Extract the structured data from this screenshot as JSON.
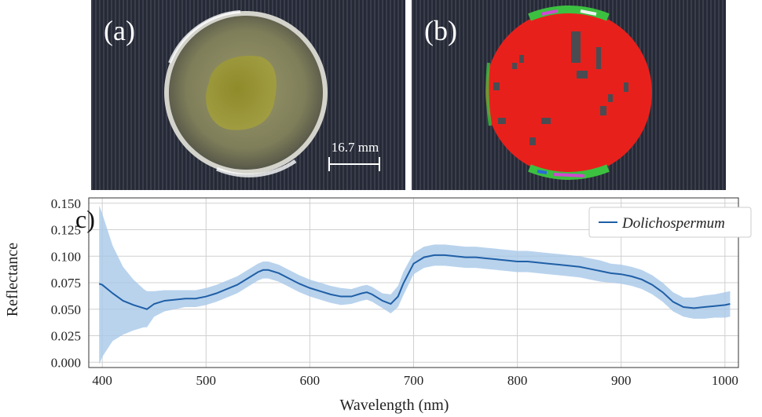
{
  "panels": {
    "a": {
      "label": "(a)",
      "scale_bar": "16.7 mm"
    },
    "b": {
      "label": "(b)"
    }
  },
  "chart_data": {
    "type": "line",
    "panel_label": "c)",
    "xlabel": "Wavelength (nm)",
    "ylabel": "Reflectance",
    "xlim": [
      387,
      1013
    ],
    "ylim": [
      -0.005,
      0.155
    ],
    "xticks": [
      400,
      500,
      600,
      700,
      800,
      900,
      1000
    ],
    "yticks": [
      0.0,
      0.025,
      0.05,
      0.075,
      0.1,
      0.125,
      0.15
    ],
    "ytick_labels": [
      "0.000",
      "0.025",
      "0.050",
      "0.075",
      "0.100",
      "0.125",
      "0.150"
    ],
    "grid": true,
    "legend_position": "top-right",
    "colors": {
      "line": "#1f5fa6",
      "band": "#a7c8e8"
    },
    "series": [
      {
        "name": "Dolichospermum",
        "x": [
          397,
          400,
          410,
          420,
          430,
          440,
          443,
          450,
          460,
          470,
          480,
          490,
          500,
          510,
          520,
          530,
          540,
          550,
          555,
          560,
          570,
          580,
          590,
          600,
          610,
          620,
          630,
          640,
          650,
          655,
          660,
          670,
          678,
          685,
          690,
          700,
          710,
          720,
          730,
          740,
          750,
          760,
          770,
          780,
          790,
          800,
          810,
          820,
          830,
          840,
          850,
          860,
          870,
          880,
          890,
          900,
          910,
          920,
          930,
          940,
          950,
          960,
          970,
          980,
          990,
          1000,
          1005
        ],
        "y": [
          0.074,
          0.073,
          0.065,
          0.058,
          0.054,
          0.051,
          0.05,
          0.055,
          0.058,
          0.059,
          0.06,
          0.06,
          0.062,
          0.065,
          0.069,
          0.073,
          0.079,
          0.085,
          0.087,
          0.087,
          0.084,
          0.079,
          0.074,
          0.07,
          0.067,
          0.064,
          0.062,
          0.062,
          0.065,
          0.066,
          0.064,
          0.058,
          0.055,
          0.062,
          0.074,
          0.093,
          0.099,
          0.101,
          0.101,
          0.1,
          0.099,
          0.099,
          0.098,
          0.097,
          0.096,
          0.095,
          0.095,
          0.094,
          0.093,
          0.092,
          0.091,
          0.09,
          0.088,
          0.086,
          0.084,
          0.083,
          0.081,
          0.078,
          0.073,
          0.066,
          0.057,
          0.052,
          0.051,
          0.052,
          0.053,
          0.054,
          0.055
        ],
        "lower": [
          -0.002,
          0.005,
          0.02,
          0.026,
          0.03,
          0.033,
          0.033,
          0.043,
          0.048,
          0.05,
          0.052,
          0.052,
          0.054,
          0.057,
          0.061,
          0.065,
          0.071,
          0.077,
          0.079,
          0.079,
          0.076,
          0.071,
          0.066,
          0.062,
          0.059,
          0.056,
          0.054,
          0.055,
          0.058,
          0.059,
          0.057,
          0.051,
          0.046,
          0.052,
          0.063,
          0.083,
          0.089,
          0.091,
          0.091,
          0.09,
          0.089,
          0.089,
          0.088,
          0.087,
          0.086,
          0.085,
          0.085,
          0.084,
          0.083,
          0.082,
          0.081,
          0.08,
          0.078,
          0.076,
          0.075,
          0.074,
          0.072,
          0.069,
          0.064,
          0.057,
          0.048,
          0.043,
          0.041,
          0.041,
          0.042,
          0.042,
          0.043
        ],
        "upper": [
          0.148,
          0.14,
          0.11,
          0.09,
          0.078,
          0.069,
          0.067,
          0.067,
          0.068,
          0.068,
          0.068,
          0.068,
          0.07,
          0.073,
          0.077,
          0.081,
          0.087,
          0.093,
          0.095,
          0.095,
          0.092,
          0.087,
          0.082,
          0.078,
          0.075,
          0.072,
          0.07,
          0.069,
          0.072,
          0.073,
          0.071,
          0.065,
          0.064,
          0.072,
          0.085,
          0.103,
          0.109,
          0.111,
          0.111,
          0.11,
          0.109,
          0.109,
          0.108,
          0.107,
          0.106,
          0.105,
          0.105,
          0.104,
          0.103,
          0.102,
          0.101,
          0.1,
          0.098,
          0.096,
          0.093,
          0.092,
          0.09,
          0.087,
          0.082,
          0.075,
          0.066,
          0.061,
          0.061,
          0.063,
          0.064,
          0.066,
          0.067
        ]
      }
    ]
  }
}
